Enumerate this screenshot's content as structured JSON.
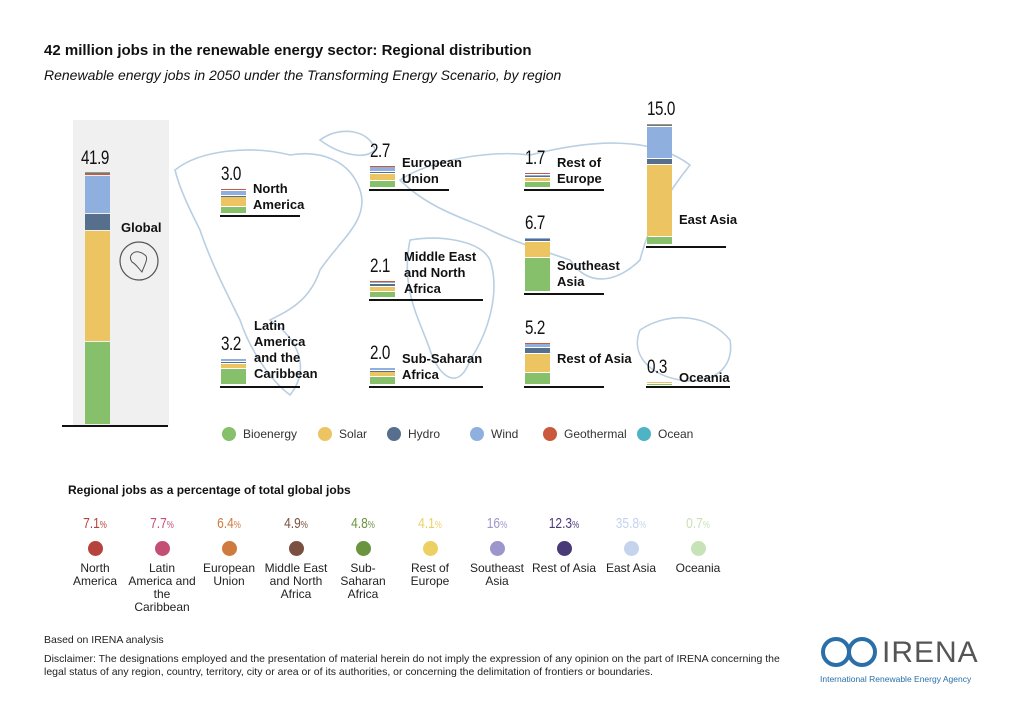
{
  "title": "42 million jobs in the renewable energy sector: Regional distribution",
  "subtitle": "Renewable energy jobs in 2050 under the Transforming Energy Scenario, by region",
  "colors": {
    "Bioenergy": "#86c06a",
    "Solar": "#ecc462",
    "Hydro": "#566f8c",
    "Wind": "#8fb0de",
    "Geothermal": "#c9583c",
    "Ocean": "#4fb3c6"
  },
  "chart_data": {
    "type": "bar",
    "stacked": true,
    "unit": "million jobs",
    "series_order": [
      "Bioenergy",
      "Solar",
      "Hydro",
      "Wind",
      "Geothermal",
      "Ocean"
    ],
    "global": {
      "name": "Global",
      "total": "41.9",
      "values": {
        "Bioenergy": 13.7,
        "Solar": 18.4,
        "Hydro": 2.8,
        "Wind": 6.2,
        "Geothermal": 0.5,
        "Ocean": 0.3
      }
    },
    "regions": [
      {
        "name": "North America",
        "total": "3.0",
        "values": {
          "Bioenergy": 0.9,
          "Solar": 1.2,
          "Hydro": 0.2,
          "Wind": 0.6,
          "Geothermal": 0.1
        }
      },
      {
        "name": "European Union",
        "total": "2.7",
        "values": {
          "Bioenergy": 0.9,
          "Solar": 0.9,
          "Hydro": 0.2,
          "Wind": 0.6,
          "Geothermal": 0.1
        }
      },
      {
        "name": "Rest of Europe",
        "total": "1.7",
        "values": {
          "Bioenergy": 0.8,
          "Solar": 0.5,
          "Hydro": 0.1,
          "Wind": 0.2,
          "Geothermal": 0.1
        }
      },
      {
        "name": "East Asia",
        "total": "15.0",
        "values": {
          "Bioenergy": 1.0,
          "Solar": 9.0,
          "Hydro": 0.8,
          "Wind": 4.0,
          "Geothermal": 0.1,
          "Ocean": 0.1
        }
      },
      {
        "name": "Middle East and North Africa",
        "total": "2.1",
        "values": {
          "Bioenergy": 0.7,
          "Solar": 0.7,
          "Hydro": 0.3,
          "Wind": 0.3,
          "Geothermal": 0.1
        }
      },
      {
        "name": "Southeast Asia",
        "total": "6.7",
        "values": {
          "Bioenergy": 4.3,
          "Solar": 2.0,
          "Hydro": 0.3,
          "Wind": 0.1
        }
      },
      {
        "name": "Latin America and the Caribbean",
        "total": "3.2",
        "values": {
          "Bioenergy": 2.0,
          "Solar": 0.6,
          "Hydro": 0.3,
          "Wind": 0.3
        }
      },
      {
        "name": "Sub-Saharan Africa",
        "total": "2.0",
        "values": {
          "Bioenergy": 1.0,
          "Solar": 0.6,
          "Hydro": 0.1,
          "Wind": 0.3
        }
      },
      {
        "name": "Rest of Asia",
        "total": "5.2",
        "values": {
          "Bioenergy": 1.5,
          "Solar": 2.4,
          "Hydro": 0.7,
          "Wind": 0.5,
          "Geothermal": 0.1
        }
      },
      {
        "name": "Oceania",
        "total": "0.3",
        "values": {
          "Bioenergy": 0.1,
          "Solar": 0.2
        }
      }
    ],
    "legend": [
      "Bioenergy",
      "Solar",
      "Hydro",
      "Wind",
      "Geothermal",
      "Ocean"
    ],
    "legend_placement": "bottom"
  },
  "share": {
    "title": "Regional jobs as a percentage of total global jobs",
    "items": [
      {
        "name": "North America",
        "value": "7.1",
        "color": "#b5443e"
      },
      {
        "name": "Latin America and the Caribbean",
        "value": "7.7",
        "color": "#c44f75"
      },
      {
        "name": "European Union",
        "value": "6.4",
        "color": "#cf7a3e"
      },
      {
        "name": "Middle East and North Africa",
        "value": "4.9",
        "color": "#7a5140"
      },
      {
        "name": "Sub-Saharan Africa",
        "value": "4.8",
        "color": "#6a9440"
      },
      {
        "name": "Rest of Europe",
        "value": "4.1",
        "color": "#edd063"
      },
      {
        "name": "Southeast Asia",
        "value": "16",
        "color": "#9b97cc"
      },
      {
        "name": "Rest of Asia",
        "value": "12.3",
        "color": "#4a3b78"
      },
      {
        "name": "East Asia",
        "value": "35.8",
        "color": "#c4d4ec"
      },
      {
        "name": "Oceania",
        "value": "0.7",
        "color": "#c8e2b8"
      }
    ],
    "unit": "%"
  },
  "footer": {
    "based_on": "Based on IRENA analysis",
    "disclaimer": "Disclaimer: The designations employed and the presentation of material herein do not imply the expression of any opinion on the part of IRENA concerning the legal status of any region, country, territory, city or area or of its authorities, or concerning the delimitation of frontiers or boundaries."
  },
  "logo": {
    "text": "IRENA",
    "subtitle": "International Renewable Energy Agency"
  }
}
